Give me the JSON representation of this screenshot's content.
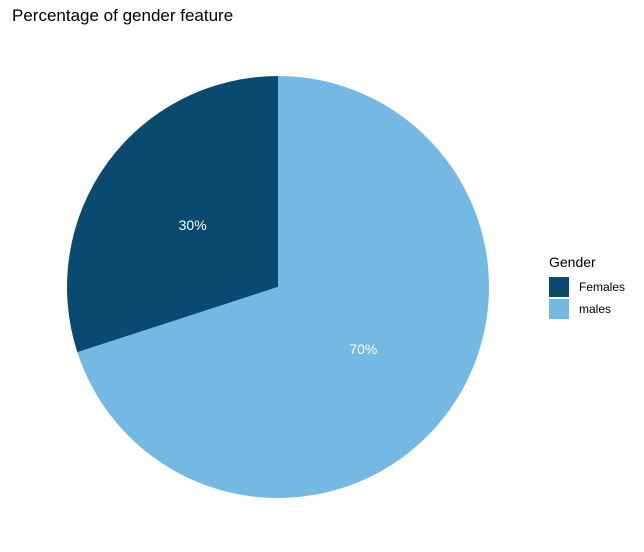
{
  "chart_data": {
    "type": "pie",
    "title": "Percentage of  gender feature",
    "categories": [
      "Females",
      "males"
    ],
    "values": [
      30,
      70
    ],
    "labels": [
      "30%",
      "70%"
    ],
    "colors": [
      "#0a4a70",
      "#74b9e3"
    ],
    "legend": {
      "title": "Gender",
      "placement": "right"
    }
  }
}
